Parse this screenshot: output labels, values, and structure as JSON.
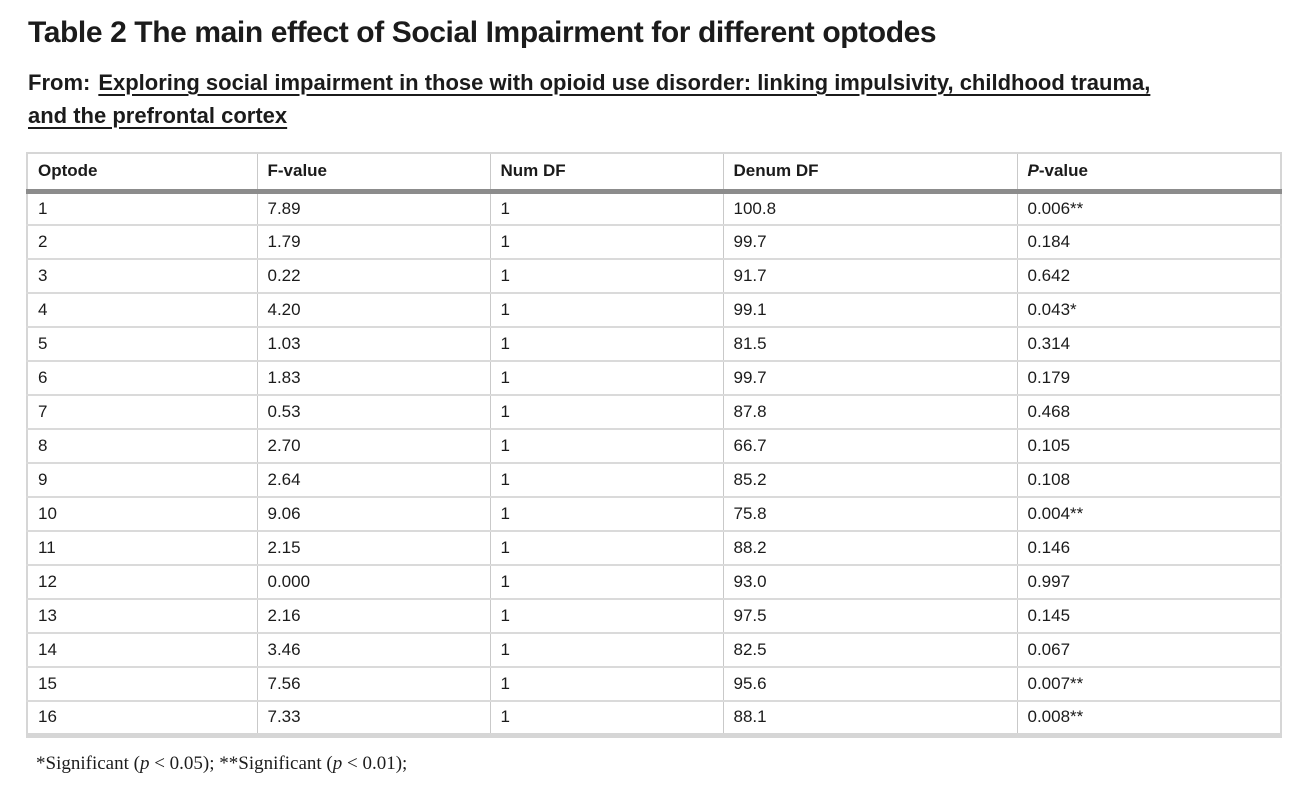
{
  "header": {
    "title": "Table 2 The main effect of Social Impairment for different optodes",
    "from_label": "From:",
    "article_link": "Exploring social impairment in those with opioid use disorder: linking impulsivity, childhood trauma, and the prefrontal cortex"
  },
  "table": {
    "columns": [
      {
        "italic_prefix": "",
        "label": "Optode"
      },
      {
        "italic_prefix": "",
        "label": "F-value"
      },
      {
        "italic_prefix": "",
        "label": "Num DF"
      },
      {
        "italic_prefix": "",
        "label": "Denum DF"
      },
      {
        "italic_prefix": "P",
        "label": "-value"
      }
    ],
    "rows": [
      [
        "1",
        "7.89",
        "1",
        "100.8",
        "0.006**"
      ],
      [
        "2",
        "1.79",
        "1",
        "99.7",
        "0.184"
      ],
      [
        "3",
        "0.22",
        "1",
        "91.7",
        "0.642"
      ],
      [
        "4",
        "4.20",
        "1",
        "99.1",
        "0.043*"
      ],
      [
        "5",
        "1.03",
        "1",
        "81.5",
        "0.314"
      ],
      [
        "6",
        "1.83",
        "1",
        "99.7",
        "0.179"
      ],
      [
        "7",
        "0.53",
        "1",
        "87.8",
        "0.468"
      ],
      [
        "8",
        "2.70",
        "1",
        "66.7",
        "0.105"
      ],
      [
        "9",
        "2.64",
        "1",
        "85.2",
        "0.108"
      ],
      [
        "10",
        "9.06",
        "1",
        "75.8",
        "0.004**"
      ],
      [
        "11",
        "2.15",
        "1",
        "88.2",
        "0.146"
      ],
      [
        "12",
        "0.000",
        "1",
        "93.0",
        "0.997"
      ],
      [
        "13",
        "2.16",
        "1",
        "97.5",
        "0.145"
      ],
      [
        "14",
        "3.46",
        "1",
        "82.5",
        "0.067"
      ],
      [
        "15",
        "7.56",
        "1",
        "95.6",
        "0.007**"
      ],
      [
        "16",
        "7.33",
        "1",
        "88.1",
        "0.008**"
      ]
    ]
  },
  "footnote": {
    "parts": [
      {
        "italic": false,
        "text": "*Significant ("
      },
      {
        "italic": true,
        "text": "p"
      },
      {
        "italic": false,
        "text": " < 0.05); **Significant ("
      },
      {
        "italic": true,
        "text": "p"
      },
      {
        "italic": false,
        "text": " < 0.01);"
      }
    ]
  },
  "colors": {
    "text": "#1b1b1b",
    "table_outer_border": "#d6d6d6",
    "header_rule": "#8c8c8c",
    "cell_vertical_border": "#c9c9c9",
    "cell_horizontal_border": "#dadada",
    "background": "#ffffff"
  }
}
